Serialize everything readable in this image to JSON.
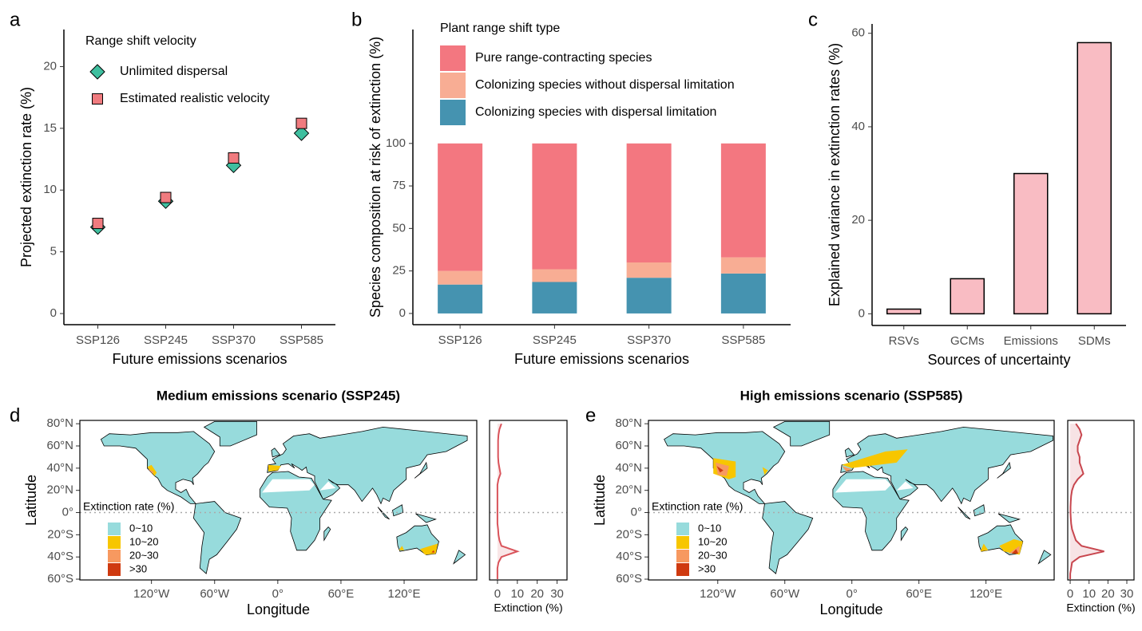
{
  "chart_data": [
    {
      "type": "dot",
      "panel": "a",
      "xlabel": "Future emissions scenarios",
      "ylabel": "Projected extinction rate (%)",
      "legend_title": "Range shift velocity",
      "categories": [
        "SSP126",
        "SSP245",
        "SSP370",
        "SSP585"
      ],
      "series": [
        {
          "name": "Unlimited dispersal",
          "color": "#3fbf9f",
          "marker": "diamond",
          "values": [
            7.0,
            9.1,
            12.0,
            14.6
          ]
        },
        {
          "name": "Estimated realistic velocity",
          "color": "#f07b7f",
          "marker": "square",
          "values": [
            7.3,
            9.4,
            12.6,
            15.4
          ]
        }
      ],
      "ylim": [
        -0.9,
        23
      ],
      "yticks": [
        0,
        5,
        10,
        15,
        20
      ]
    },
    {
      "type": "stacked_bar",
      "panel": "b",
      "xlabel": "Future emissions scenarios",
      "ylabel": "Species composition at risk of extinction (%)",
      "legend_title": "Plant range shift type",
      "categories": [
        "SSP126",
        "SSP245",
        "SSP370",
        "SSP585"
      ],
      "series": [
        {
          "name": "Pure range-contracting species",
          "color": "#f37780",
          "values": [
            75,
            74,
            70,
            67
          ]
        },
        {
          "name": "Colonizing species without dispersal limitation",
          "color": "#f8ad94",
          "values": [
            8,
            7.5,
            9,
            9.5
          ]
        },
        {
          "name": "Colonizing species with dispersal limitation",
          "color": "#4593b0",
          "values": [
            17,
            18.5,
            21,
            23.5
          ]
        }
      ],
      "ylim": [
        -6.6,
        167
      ],
      "yticks": [
        0,
        25,
        50,
        75,
        100
      ]
    },
    {
      "type": "bar",
      "panel": "c",
      "xlabel": "Sources of uncertainty",
      "ylabel": "Explained variance in extinction rates (%)",
      "categories": [
        "RSVs",
        "GCMs",
        "Emissions",
        "SDMs"
      ],
      "values": [
        1,
        7.5,
        30,
        58
      ],
      "color": "#f9bcc3",
      "ylim": [
        -2.5,
        62
      ],
      "yticks": [
        0,
        20,
        40,
        60
      ]
    },
    {
      "type": "map",
      "panel": "d",
      "title": "Medium emissions scenario (SSP245)",
      "xlabel": "Longitude",
      "ylabel": "Latitude",
      "scenario": "medium",
      "xlim": [
        -188,
        189
      ],
      "ylim": [
        -60.7,
        83
      ],
      "xticks": [
        {
          "value": -120,
          "label": "120°W"
        },
        {
          "value": -60,
          "label": "60°W"
        },
        {
          "value": 0,
          "label": "0°"
        },
        {
          "value": 60,
          "label": "60°E"
        },
        {
          "value": 120,
          "label": "120°E"
        }
      ],
      "yticks": [
        {
          "value": 80,
          "label": "80°N"
        },
        {
          "value": 60,
          "label": "60°N"
        },
        {
          "value": 40,
          "label": "40°N"
        },
        {
          "value": 20,
          "label": "20°N"
        },
        {
          "value": 0,
          "label": "0°"
        },
        {
          "value": -20,
          "label": "20°S"
        },
        {
          "value": -40,
          "label": "40°S"
        },
        {
          "value": -60,
          "label": "60°S"
        }
      ],
      "legend_title": "Extinction rate (%)",
      "legend": [
        {
          "label": "0~10",
          "color": "#97dbdc"
        },
        {
          "label": "10~20",
          "color": "#f7c600"
        },
        {
          "label": "20~30",
          "color": "#f79960"
        },
        {
          "label": ">30",
          "color": "#cf3a10"
        }
      ]
    },
    {
      "type": "profile",
      "panel": "d",
      "xlabel": "Extinction (%)",
      "color": "#d9545b",
      "y": [
        80,
        75,
        70,
        65,
        60,
        55,
        50,
        45,
        40,
        35,
        30,
        25,
        20,
        15,
        10,
        5,
        0,
        -5,
        -10,
        -15,
        -20,
        -25,
        -30,
        -35,
        -40,
        -45,
        -50,
        -55,
        -60
      ],
      "values": [
        2,
        1,
        0.5,
        0.3,
        0.3,
        0.3,
        0.3,
        0.5,
        1,
        1.5,
        0.5,
        0,
        0,
        0,
        0,
        0,
        0,
        0,
        0,
        0.3,
        0.5,
        1,
        2,
        10,
        2,
        0.5,
        0,
        0,
        0
      ],
      "xlim": [
        -4,
        35
      ],
      "ylim": [
        -60.7,
        83
      ],
      "xticks": [
        0,
        10,
        20,
        30
      ]
    },
    {
      "type": "map",
      "panel": "e",
      "title": "High emissions scenario (SSP585)",
      "xlabel": "Longitude",
      "ylabel": "Latitude",
      "scenario": "high",
      "xlim": [
        -182,
        181
      ],
      "ylim": [
        -60.7,
        83
      ],
      "xticks": [
        {
          "value": -120,
          "label": "120°W"
        },
        {
          "value": -60,
          "label": "60°W"
        },
        {
          "value": 0,
          "label": "0°"
        },
        {
          "value": 60,
          "label": "60°E"
        },
        {
          "value": 120,
          "label": "120°E"
        }
      ],
      "yticks": [
        {
          "value": 80,
          "label": "80°N"
        },
        {
          "value": 60,
          "label": "60°N"
        },
        {
          "value": 40,
          "label": "40°N"
        },
        {
          "value": 20,
          "label": "20°N"
        },
        {
          "value": 0,
          "label": "0°"
        },
        {
          "value": -20,
          "label": "20°S"
        },
        {
          "value": -40,
          "label": "40°S"
        },
        {
          "value": -60,
          "label": "60°S"
        }
      ],
      "legend_title": "Extinction rate (%)",
      "legend": [
        {
          "label": "0~10",
          "color": "#97dbdc"
        },
        {
          "label": "10~20",
          "color": "#f7c600"
        },
        {
          "label": "20~30",
          "color": "#f79960"
        },
        {
          "label": ">30",
          "color": "#cf3a10"
        }
      ]
    },
    {
      "type": "profile",
      "panel": "e",
      "xlabel": "Extinction (%)",
      "color": "#c8464e",
      "y": [
        80,
        75,
        70,
        65,
        60,
        55,
        50,
        45,
        40,
        35,
        30,
        25,
        20,
        15,
        10,
        5,
        0,
        -5,
        -10,
        -15,
        -20,
        -25,
        -30,
        -35,
        -40,
        -45,
        -50,
        -55,
        -60
      ],
      "values": [
        3,
        5,
        6,
        5,
        4,
        4,
        5,
        5,
        6,
        7,
        4,
        2,
        1,
        0.5,
        0.3,
        0.2,
        0.2,
        0.3,
        0.5,
        1,
        2,
        3,
        6,
        18,
        5,
        1,
        0.5,
        0,
        0
      ],
      "xlim": [
        -1.3,
        33.8
      ],
      "ylim": [
        -60.7,
        83
      ],
      "xticks": [
        0,
        10,
        20,
        30
      ]
    }
  ]
}
